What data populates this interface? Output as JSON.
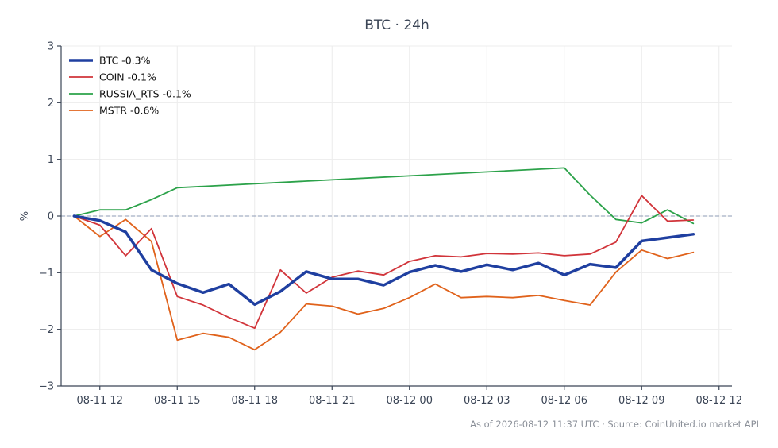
{
  "chart_data": {
    "type": "line",
    "title": "BTC · 24h",
    "ylabel": "%",
    "xlabel": "",
    "ylim": [
      -3,
      3
    ],
    "xlim": [
      "2026-08-11 10:30",
      "2026-08-12 12:30"
    ],
    "yticks": [
      "−3",
      "−2",
      "−1",
      "0",
      "1",
      "2",
      "3"
    ],
    "ytick_values": [
      -3,
      -2,
      -1,
      0,
      1,
      2,
      3
    ],
    "xticks": [
      "08-11 12",
      "08-11 15",
      "08-11 18",
      "08-11 21",
      "08-12 00",
      "08-12 03",
      "08-12 06",
      "08-12 09",
      "08-12 12"
    ],
    "xtick_values": [
      "2026-08-11 12:00",
      "2026-08-11 15:00",
      "2026-08-11 18:00",
      "2026-08-11 21:00",
      "2026-08-12 00:00",
      "2026-08-12 03:00",
      "2026-08-12 06:00",
      "2026-08-12 09:00",
      "2026-08-12 12:00"
    ],
    "zero_line": true,
    "grid": true,
    "legend_position": "top-left",
    "x": [
      "2026-08-11 11:00",
      "2026-08-11 12:00",
      "2026-08-11 13:00",
      "2026-08-11 14:00",
      "2026-08-11 15:00",
      "2026-08-11 16:00",
      "2026-08-11 17:00",
      "2026-08-11 18:00",
      "2026-08-11 19:00",
      "2026-08-11 20:00",
      "2026-08-11 21:00",
      "2026-08-11 22:00",
      "2026-08-11 23:00",
      "2026-08-12 00:00",
      "2026-08-12 01:00",
      "2026-08-12 02:00",
      "2026-08-12 03:00",
      "2026-08-12 04:00",
      "2026-08-12 05:00",
      "2026-08-12 06:00",
      "2026-08-12 07:00",
      "2026-08-12 08:00",
      "2026-08-12 09:00",
      "2026-08-12 10:00",
      "2026-08-12 11:00"
    ],
    "series": [
      {
        "name": "BTC -0.3%",
        "color": "#1f3fa0",
        "width": 3.5,
        "values": [
          0,
          -0.08,
          -0.28,
          -0.95,
          -1.19,
          -1.35,
          -1.2,
          -1.56,
          -1.33,
          -0.98,
          -1.11,
          -1.11,
          -1.22,
          -0.99,
          -0.87,
          -0.98,
          -0.86,
          -0.95,
          -0.83,
          -1.04,
          -0.85,
          -0.91,
          -0.44,
          -0.38,
          -0.32
        ]
      },
      {
        "name": "COIN -0.1%",
        "color": "#d1343a",
        "width": 1.8,
        "values": [
          0,
          -0.16,
          -0.7,
          -0.22,
          -1.42,
          -1.57,
          -1.79,
          -1.98,
          -0.95,
          -1.36,
          -1.08,
          -0.97,
          -1.04,
          -0.8,
          -0.7,
          -0.72,
          -0.66,
          -0.67,
          -0.65,
          -0.7,
          -0.67,
          -0.46,
          0.36,
          -0.09,
          -0.07
        ]
      },
      {
        "name": "RUSSIA_RTS -0.1%",
        "color": "#2ca24a",
        "width": 1.8,
        "values": [
          0,
          0.11,
          0.11,
          0.29,
          0.5,
          null,
          null,
          null,
          null,
          null,
          null,
          null,
          null,
          null,
          null,
          null,
          null,
          null,
          null,
          0.85,
          0.37,
          -0.06,
          -0.12,
          0.11,
          -0.13
        ]
      },
      {
        "name": "MSTR -0.6%",
        "color": "#e0621b",
        "width": 1.8,
        "values": [
          0,
          -0.36,
          -0.06,
          -0.45,
          -2.19,
          -2.07,
          -2.14,
          -2.36,
          -2.05,
          -1.55,
          -1.59,
          -1.73,
          -1.63,
          -1.44,
          -1.2,
          -1.44,
          -1.42,
          -1.44,
          -1.4,
          -1.49,
          -1.57,
          -0.99,
          -0.6,
          -0.75,
          -0.64
        ]
      }
    ]
  },
  "footer": "As of 2026-08-12 11:37 UTC · Source: CoinUnited.io market API"
}
